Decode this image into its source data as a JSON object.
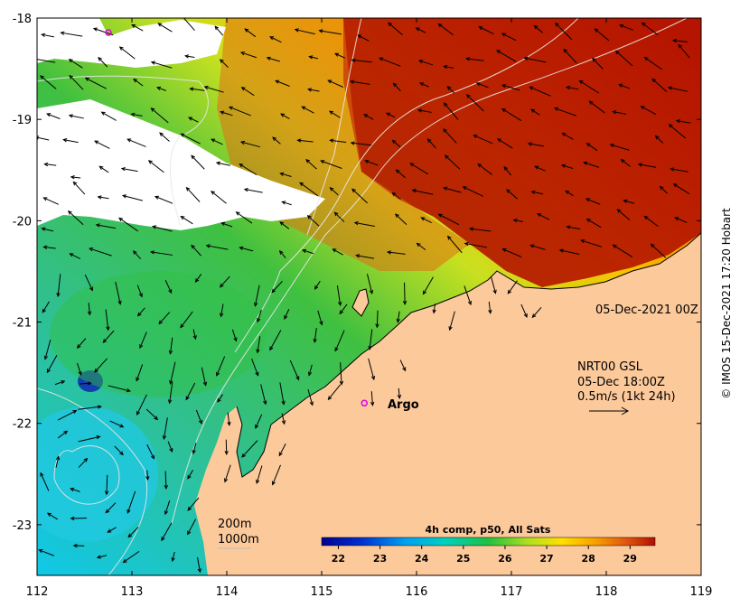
{
  "map": {
    "date_label": "05-Dec-2021 00Z",
    "credit": "© IMOS 15-Dec-2021 17:20 Hobart",
    "x_ticks": [
      "112",
      "113",
      "114",
      "115",
      "116",
      "117",
      "118",
      "119"
    ],
    "y_ticks": [
      "-18",
      "-19",
      "-20",
      "-21",
      "-22",
      "-23"
    ],
    "x_range": [
      112,
      119
    ],
    "y_range": [
      -23.5,
      -18
    ],
    "current_legend": {
      "line1": "NRT00 GSL",
      "line2": "05-Dec 18:00Z",
      "line3": "0.5m/s (1kt 24h)"
    },
    "contour_legend": {
      "line1": "200m",
      "line2": "1000m"
    },
    "argo_label": "Argo",
    "argo_float": {
      "lon": 115.45,
      "lat": -21.8
    },
    "colorbar": {
      "title": "4h comp, p50, All Sats",
      "ticks": [
        "22",
        "23",
        "24",
        "25",
        "26",
        "27",
        "28",
        "29"
      ],
      "range": [
        21.6,
        29.6
      ]
    },
    "colors": {
      "land": "#fcc99b",
      "no_data": "#ffffff",
      "argo": "#e000e0"
    }
  }
}
